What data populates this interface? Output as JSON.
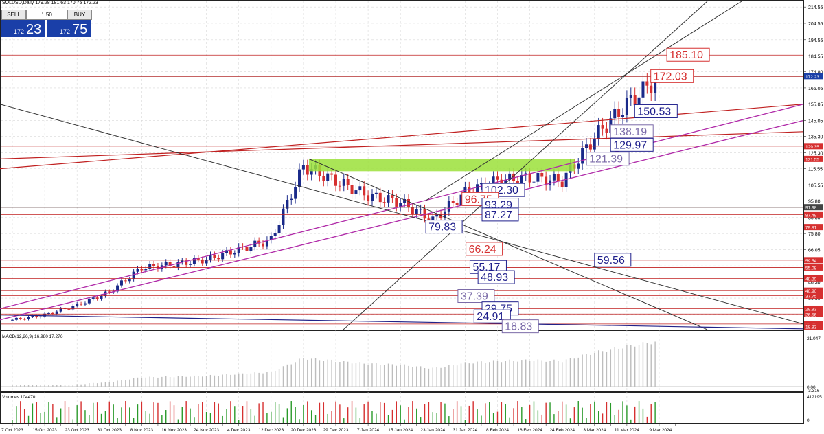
{
  "header": {
    "symbol": "SOLUSD,Daily",
    "ohlc": "179.28 181.63 170.75 172.23"
  },
  "trade_panel": {
    "sell_label": "SELL",
    "buy_label": "BUY",
    "lot": "1.50",
    "sell_small": "172",
    "sell_big": "23",
    "buy_small": "172",
    "buy_big": "75"
  },
  "chart_data": [
    {
      "type": "candlestick",
      "y_ticks": [
        "214.55",
        "204.55",
        "194.55",
        "184.55",
        "174.80",
        "165.05",
        "155.05",
        "145.05",
        "135.30",
        "125.30",
        "115.55",
        "105.55",
        "95.80",
        "85.80",
        "75.80",
        "66.05",
        "56.05",
        "46.30",
        "36.30",
        "26.30"
      ],
      "ylim": [
        17,
        218
      ],
      "x_ticks": [
        "7 Oct 2023",
        "15 Oct 2023",
        "23 Oct 2023",
        "31 Oct 2023",
        "8 Nov 2023",
        "16 Nov 2023",
        "24 Nov 2023",
        "4 Dec 2023",
        "12 Dec 2023",
        "20 Dec 2023",
        "29 Dec 2023",
        "7 Jan 2024",
        "15 Jan 2024",
        "23 Jan 2024",
        "31 Jan 2024",
        "8 Feb 2024",
        "16 Feb 2024",
        "24 Feb 2024",
        "3 Mar 2024",
        "11 Mar 2024",
        "19 Mar 2024"
      ],
      "last_price": 172.23,
      "price_tags": [
        {
          "value": "172.23",
          "y": 172.23,
          "color": "#1a3fa8"
        },
        {
          "value": "129.35",
          "y": 129.35,
          "color": "#d63030"
        },
        {
          "value": "121.55",
          "y": 121.55,
          "color": "#d63030"
        },
        {
          "value": "91.98",
          "y": 91.98,
          "color": "#444444"
        },
        {
          "value": "87.49",
          "y": 87.49,
          "color": "#d63030"
        },
        {
          "value": "79.81",
          "y": 79.81,
          "color": "#d63030"
        },
        {
          "value": "59.54",
          "y": 59.54,
          "color": "#d63030"
        },
        {
          "value": "55.08",
          "y": 55.08,
          "color": "#d63030"
        },
        {
          "value": "48.39",
          "y": 48.39,
          "color": "#d63030"
        },
        {
          "value": "40.90",
          "y": 40.9,
          "color": "#d63030"
        },
        {
          "value": "37.75",
          "y": 37.75,
          "color": "#d63030"
        },
        {
          "value": "29.83",
          "y": 29.83,
          "color": "#d63030"
        },
        {
          "value": "26.56",
          "y": 26.56,
          "color": "#d63030"
        },
        {
          "value": "20.42",
          "y": 20.42,
          "color": "#d63030"
        },
        {
          "value": "18.83",
          "y": 18.83,
          "color": "#d63030"
        }
      ],
      "level_labels": [
        {
          "text": "185.10",
          "price": 185.1,
          "color": "#d63030",
          "x": 0.83
        },
        {
          "text": "172.03",
          "price": 172.03,
          "color": "#d63030",
          "x": 0.81
        },
        {
          "text": "150.53",
          "price": 150.53,
          "color": "#1f1f8c",
          "x": 0.79
        },
        {
          "text": "138.19",
          "price": 138.19,
          "color": "#7a6aa8",
          "x": 0.76
        },
        {
          "text": "129.97",
          "price": 129.97,
          "color": "#1f1f8c",
          "x": 0.76
        },
        {
          "text": "121.39",
          "price": 121.39,
          "color": "#7a6aa8",
          "x": 0.73
        },
        {
          "text": "102.30",
          "price": 102.3,
          "color": "#1f1f8c",
          "x": 0.6
        },
        {
          "text": "96.75",
          "price": 96.75,
          "color": "#d63030",
          "x": 0.575
        },
        {
          "text": "93.29",
          "price": 93.29,
          "color": "#1f1f8c",
          "x": 0.6
        },
        {
          "text": "87.27",
          "price": 87.27,
          "color": "#1f1f8c",
          "x": 0.6
        },
        {
          "text": "79.83",
          "price": 79.83,
          "color": "#1f1f8c",
          "x": 0.53
        },
        {
          "text": "66.24",
          "price": 66.24,
          "color": "#d63030",
          "x": 0.58
        },
        {
          "text": "59.56",
          "price": 59.56,
          "color": "#1f1f8c",
          "x": 0.74
        },
        {
          "text": "55.17",
          "price": 55.17,
          "color": "#1f1f8c",
          "x": 0.585
        },
        {
          "text": "48.93",
          "price": 48.93,
          "color": "#1f1f8c",
          "x": 0.595
        },
        {
          "text": "37.39",
          "price": 37.39,
          "color": "#7a6aa8",
          "x": 0.57
        },
        {
          "text": "29.75",
          "price": 29.75,
          "color": "#1f1f8c",
          "x": 0.6
        },
        {
          "text": "24.91",
          "price": 24.91,
          "color": "#1f1f8c",
          "x": 0.59
        },
        {
          "text": "18.83",
          "price": 18.83,
          "color": "#7a6aa8",
          "x": 0.625
        }
      ],
      "horizontal_levels": [
        185.1,
        172.03,
        129.35,
        121.55,
        91.98,
        87.49,
        79.81,
        59.54,
        55.08,
        48.39,
        40.9,
        37.75,
        29.83,
        26.56,
        20.42
      ],
      "key_points": [
        {
          "date": "7 Oct 2023",
          "close": 23
        },
        {
          "date": "15 Oct 2023",
          "close": 26
        },
        {
          "date": "23 Oct 2023",
          "close": 32
        },
        {
          "date": "31 Oct 2023",
          "close": 40
        },
        {
          "date": "8 Nov 2023",
          "close": 55
        },
        {
          "date": "16 Nov 2023",
          "close": 57
        },
        {
          "date": "24 Nov 2023",
          "close": 60
        },
        {
          "date": "4 Dec 2023",
          "close": 66
        },
        {
          "date": "12 Dec 2023",
          "close": 72
        },
        {
          "date": "20 Dec 2023",
          "close": 117
        },
        {
          "date": "29 Dec 2023",
          "close": 108
        },
        {
          "date": "7 Jan 2024",
          "close": 99
        },
        {
          "date": "15 Jan 2024",
          "close": 95
        },
        {
          "date": "23 Jan 2024",
          "close": 84
        },
        {
          "date": "31 Jan 2024",
          "close": 101
        },
        {
          "date": "8 Feb 2024",
          "close": 108
        },
        {
          "date": "16 Feb 2024",
          "close": 110
        },
        {
          "date": "24 Feb 2024",
          "close": 108
        },
        {
          "date": "3 Mar 2024",
          "close": 135
        },
        {
          "date": "11 Mar 2024",
          "close": 155
        },
        {
          "date": "19 Mar 2024",
          "close": 172
        }
      ],
      "colors": {
        "up": "#1a2a8a",
        "down": "#d63030",
        "grid": "#d8d8d8",
        "magenta": "#b02aa8",
        "red_trend": "#c02020",
        "black_trend": "#333333",
        "green_zone": "#9be03a"
      }
    },
    {
      "type": "bar",
      "label": "MACD(12,26,9) 16.980 17.276",
      "y_ticks": [
        "21.047",
        "0.00",
        "-3.316"
      ]
    },
    {
      "type": "bar",
      "label": "Volumes 104470",
      "y_ticks": [
        "412195",
        "0"
      ]
    }
  ]
}
